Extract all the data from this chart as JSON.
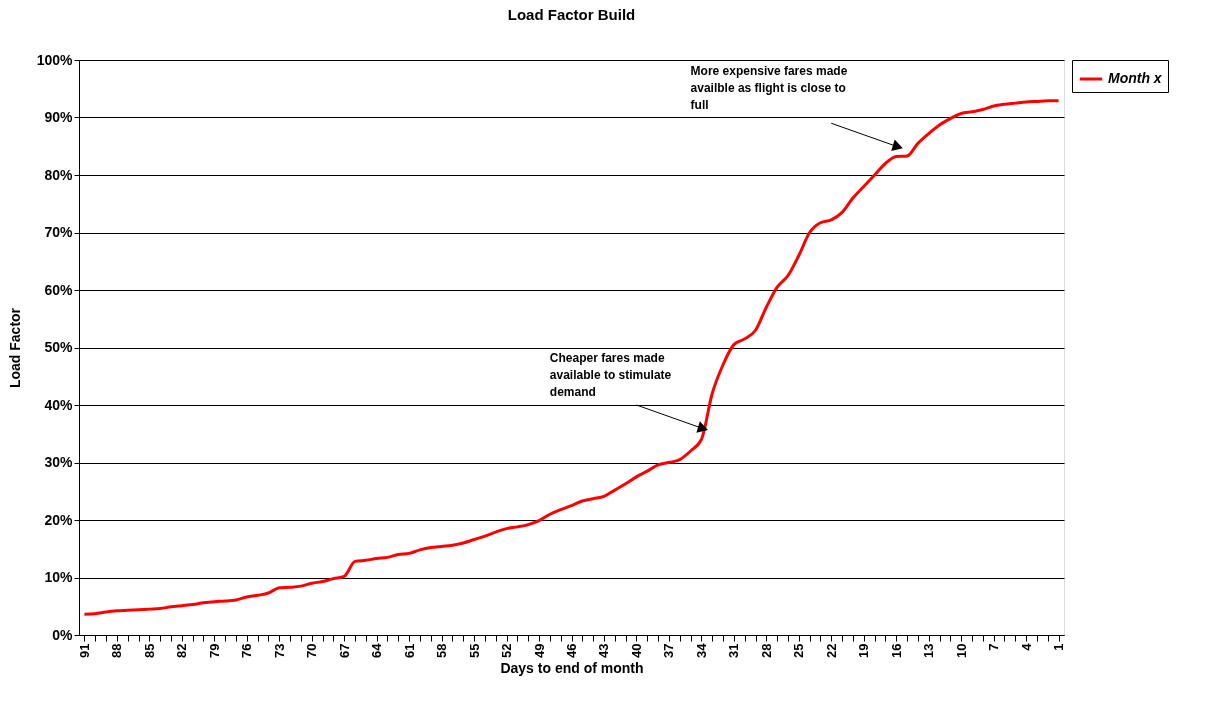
{
  "chart_data": {
    "type": "line",
    "title": "Load Factor Build",
    "xlabel": "Days to end of month",
    "ylabel": "Load Factor",
    "categories": [
      "91",
      null,
      null,
      "88",
      null,
      null,
      "85",
      null,
      null,
      "82",
      null,
      null,
      "79",
      null,
      null,
      "76",
      null,
      null,
      "73",
      null,
      null,
      "70",
      null,
      null,
      "67",
      null,
      null,
      "64",
      null,
      null,
      "61",
      null,
      null,
      "58",
      null,
      null,
      "55",
      null,
      null,
      "52",
      null,
      null,
      "49",
      null,
      null,
      "46",
      null,
      null,
      "43",
      null,
      null,
      "40",
      null,
      null,
      "37",
      null,
      null,
      "34",
      null,
      null,
      "31",
      null,
      null,
      "28",
      null,
      null,
      "25",
      null,
      null,
      "22",
      null,
      null,
      "19",
      null,
      null,
      "16",
      null,
      null,
      "13",
      null,
      null,
      "10",
      null,
      null,
      "7",
      null,
      null,
      "4",
      null,
      null,
      "1"
    ],
    "series": [
      {
        "name": "Month x",
        "color": "#ff0000",
        "values": [
          3.6,
          3.7,
          4.0,
          4.2,
          4.3,
          4.4,
          4.5,
          4.6,
          4.9,
          5.1,
          5.3,
          5.6,
          5.8,
          5.9,
          6.1,
          6.6,
          6.9,
          7.3,
          8.2,
          8.3,
          8.5,
          9.0,
          9.3,
          9.8,
          10.2,
          12.8,
          13.0,
          13.3,
          13.5,
          14.0,
          14.2,
          14.8,
          15.2,
          15.4,
          15.6,
          16.0,
          16.6,
          17.2,
          17.9,
          18.5,
          18.8,
          19.2,
          19.9,
          21.0,
          21.8,
          22.5,
          23.3,
          23.7,
          24.1,
          25.2,
          26.3,
          27.5,
          28.5,
          29.6,
          30.0,
          30.5,
          32.0,
          34.0,
          42.0,
          47.0,
          50.5,
          51.5,
          53.0,
          57.0,
          60.5,
          62.5,
          66.0,
          70.0,
          71.7,
          72.2,
          73.5,
          76.0,
          78.0,
          80.0,
          82.0,
          83.2,
          83.3,
          85.5,
          87.2,
          88.7,
          89.8,
          90.7,
          91.0,
          91.4,
          92.0,
          92.3,
          92.5,
          92.7,
          92.8,
          92.9,
          92.9
        ]
      }
    ],
    "ylim": [
      0,
      100
    ],
    "yticks": [
      {
        "value": 0,
        "label": "0%"
      },
      {
        "value": 10,
        "label": "10%"
      },
      {
        "value": 20,
        "label": "20%"
      },
      {
        "value": 30,
        "label": "30%"
      },
      {
        "value": 40,
        "label": "40%"
      },
      {
        "value": 50,
        "label": "50%"
      },
      {
        "value": 60,
        "label": "60%"
      },
      {
        "value": 70,
        "label": "70%"
      },
      {
        "value": 80,
        "label": "80%"
      },
      {
        "value": 90,
        "label": "90%"
      },
      {
        "value": 100,
        "label": "100%"
      }
    ],
    "grid": "y",
    "legend": "right",
    "marker": "none",
    "line_style": "solid",
    "annotations": [
      {
        "text": "Cheaper fares made available to stimulate demand",
        "x": "34",
        "y": 36
      },
      {
        "text": "More expensive fares made availble as flight is close to full",
        "x": "16",
        "y": 85
      }
    ]
  }
}
